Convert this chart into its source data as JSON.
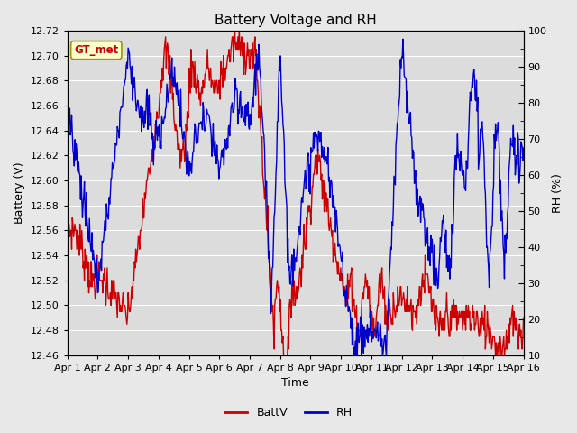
{
  "title": "Battery Voltage and RH",
  "xlabel": "Time",
  "ylabel_left": "Battery (V)",
  "ylabel_right": "RH (%)",
  "legend_label": "GT_met",
  "series": [
    "BattV",
    "RH"
  ],
  "series_colors": [
    "#cc0000",
    "#0000cc"
  ],
  "ylim_left": [
    12.46,
    12.72
  ],
  "ylim_right": [
    10,
    100
  ],
  "yticks_left": [
    12.46,
    12.48,
    12.5,
    12.52,
    12.54,
    12.56,
    12.58,
    12.6,
    12.62,
    12.64,
    12.66,
    12.68,
    12.7,
    12.72
  ],
  "yticks_right": [
    10,
    20,
    30,
    40,
    50,
    60,
    70,
    80,
    90,
    100
  ],
  "x_tick_labels": [
    "Apr 1",
    "Apr 2",
    "Apr 3",
    "Apr 4",
    "Apr 5",
    "Apr 6",
    "Apr 7",
    "Apr 8",
    "Apr 9",
    "Apr 10",
    "Apr 11",
    "Apr 12",
    "Apr 13",
    "Apr 14",
    "Apr 15",
    "Apr 16"
  ],
  "bg_color": "#e8e8e8",
  "plot_bg_color": "#dcdcdc",
  "line_width": 1.0,
  "title_fontsize": 11,
  "axis_fontsize": 9,
  "tick_fontsize": 8
}
